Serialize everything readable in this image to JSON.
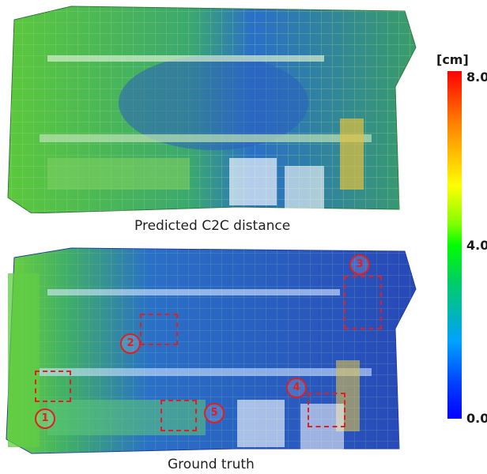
{
  "figure": {
    "caption_top": "Predicted C2C distance",
    "caption_bottom": "Ground truth"
  },
  "colorbar": {
    "unit": "[cm]",
    "max": "8.0",
    "mid": "4.0",
    "min": "0.0",
    "colors": [
      "#ff0000",
      "#ffff00",
      "#00ff00",
      "#00a0ff",
      "#0000ff"
    ]
  },
  "markers": [
    "1",
    "2",
    "3",
    "4",
    "5"
  ]
}
